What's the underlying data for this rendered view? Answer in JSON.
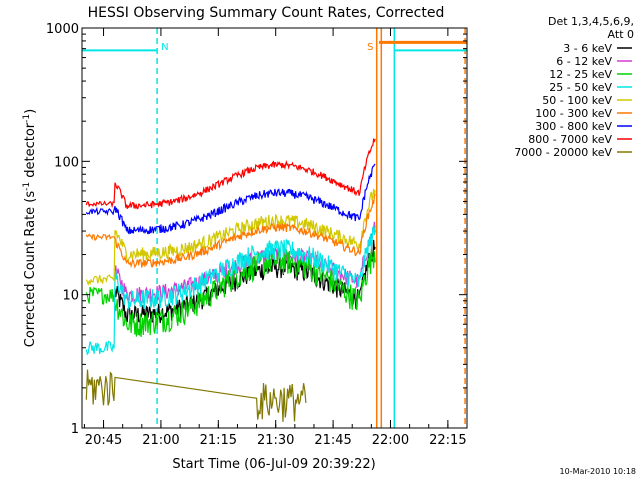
{
  "chart_data": {
    "type": "line",
    "title": "HESSI Observing Summary Count Rates, Corrected",
    "xlabel": "Start Time (06-Jul-09 20:39:22)",
    "ylabel_main": "Corrected Count Rate (s",
    "ylabel_sup1": "-1",
    "ylabel_mid": " detector",
    "ylabel_sup2": "-1",
    "ylabel_end": ")",
    "y_scale": "log",
    "ylim": [
      1,
      1000
    ],
    "xlim_minutes": [
      39.37,
      140
    ],
    "x_ticks": [
      {
        "label": "20:45",
        "min": 45
      },
      {
        "label": "21:00",
        "min": 60
      },
      {
        "label": "21:15",
        "min": 75
      },
      {
        "label": "21:30",
        "min": 90
      },
      {
        "label": "21:45",
        "min": 105
      },
      {
        "label": "22:00",
        "min": 120
      },
      {
        "label": "22:15",
        "min": 135
      }
    ],
    "y_ticks": [
      {
        "label": "1",
        "value": 1
      },
      {
        "label": "10",
        "value": 10
      },
      {
        "label": "100",
        "value": 100
      },
      {
        "label": "1000",
        "value": 1000
      }
    ],
    "legend_header": [
      "Det 1,3,4,5,6,9,",
      "Att 0"
    ],
    "series": [
      {
        "name": "3 - 6 keV",
        "color": "#000000",
        "profile": "hump",
        "base": 7,
        "peak": 16,
        "pre": null,
        "noise": 0.12
      },
      {
        "name": "6 - 12 keV",
        "color": "#d23cd2",
        "profile": "hump",
        "base": 10,
        "peak": 20,
        "pre": null,
        "noise": 0.1
      },
      {
        "name": "12 - 25 keV",
        "color": "#00d200",
        "profile": "hump",
        "base": 6,
        "peak": 18,
        "pre": 10,
        "noise": 0.15
      },
      {
        "name": "25 - 50 keV",
        "color": "#00e6e6",
        "profile": "hump",
        "base": 9,
        "peak": 22,
        "pre": 4,
        "noise": 0.12
      },
      {
        "name": "50 - 100 keV",
        "color": "#d2c800",
        "profile": "hump",
        "base": 20,
        "peak": 36,
        "pre": 13,
        "noise": 0.08
      },
      {
        "name": "100 - 300 keV",
        "color": "#ff7800",
        "profile": "hump",
        "base": 17,
        "peak": 32,
        "pre": 27,
        "noise": 0.05
      },
      {
        "name": "300 - 800 keV",
        "color": "#0000ff",
        "profile": "hump",
        "base": 30,
        "peak": 58,
        "pre": 42,
        "noise": 0.05
      },
      {
        "name": "800 - 7000 keV",
        "color": "#ff0000",
        "profile": "hump",
        "base": 46,
        "peak": 94,
        "pre": 48,
        "noise": 0.04
      },
      {
        "name": "7000 - 20000 keV",
        "color": "#807800",
        "profile": "flare",
        "base": 1,
        "peak": 2,
        "pre": 2.5,
        "noise": 0.3
      }
    ],
    "annotations": [
      {
        "text": "N",
        "min": 59,
        "color": "#00e6e6"
      },
      {
        "text": "S",
        "min": 116.5,
        "color": "#ff7800"
      }
    ],
    "flag_lines": [
      {
        "name": "night-level",
        "color": "#00e6e6",
        "value": 680,
        "from_min": 39.37,
        "to_min": 59
      },
      {
        "name": "night-level-2",
        "color": "#00e6e6",
        "value": 680,
        "from_min": 121,
        "to_min": 140
      },
      {
        "name": "saa-level",
        "color": "#ff7800",
        "value": 780,
        "from_min": 117,
        "to_min": 140
      }
    ],
    "vertical_markers": [
      {
        "min": 59,
        "color": "#00e6e6",
        "style": "dashed"
      },
      {
        "min": 116.4,
        "color": "#ff7800",
        "style": "solid"
      },
      {
        "min": 117.6,
        "color": "#ff7800",
        "style": "solid"
      },
      {
        "min": 121,
        "color": "#00e6e6",
        "style": "solid"
      },
      {
        "min": 139.5,
        "color": "#ff7800",
        "style": "dashed"
      }
    ],
    "timestamp": "10-Mar-2010 10:18"
  }
}
